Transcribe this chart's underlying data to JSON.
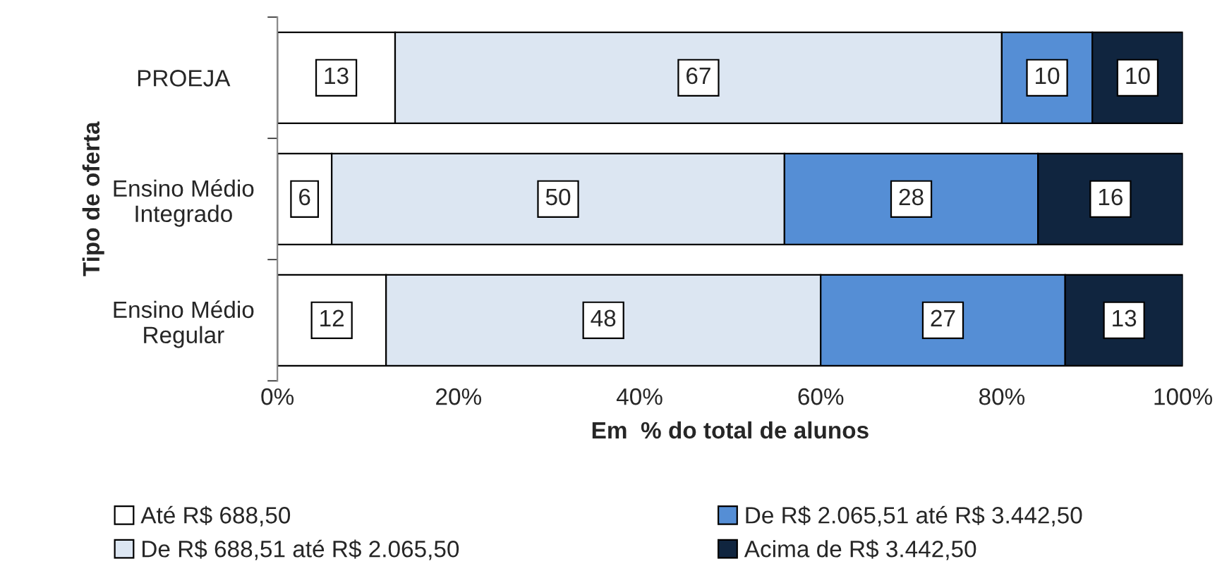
{
  "chart_data": {
    "type": "bar",
    "orientation": "horizontal",
    "stacked": true,
    "categories": [
      "PROEJA",
      "Ensino Médio\nIntegrado",
      "Ensino Médio\nRegular"
    ],
    "series": [
      {
        "name": "Até R$ 688,50",
        "color": "#ffffff",
        "values": [
          13,
          6,
          12
        ]
      },
      {
        "name": "De R$ 688,51 até R$ 2.065,50",
        "color": "#dce6f2",
        "values": [
          67,
          50,
          48
        ]
      },
      {
        "name": "De R$ 2.065,51 até R$ 3.442,50",
        "color": "#558ed5",
        "values": [
          10,
          28,
          27
        ]
      },
      {
        "name": "Acima de R$ 3.442,50",
        "color": "#10253f",
        "values": [
          10,
          16,
          13
        ]
      }
    ],
    "xlim": [
      0,
      100
    ],
    "xticks": [
      {
        "value": 0,
        "label": "0%"
      },
      {
        "value": 20,
        "label": "20%"
      },
      {
        "value": 40,
        "label": "40%"
      },
      {
        "value": 60,
        "label": "60%"
      },
      {
        "value": 80,
        "label": "80%"
      },
      {
        "value": 100,
        "label": "100%"
      }
    ],
    "xlabel": "Em  % do total de alunos",
    "ylabel": "Tipo de oferta",
    "data_labels": true,
    "grid": false,
    "legend": "bottom"
  }
}
